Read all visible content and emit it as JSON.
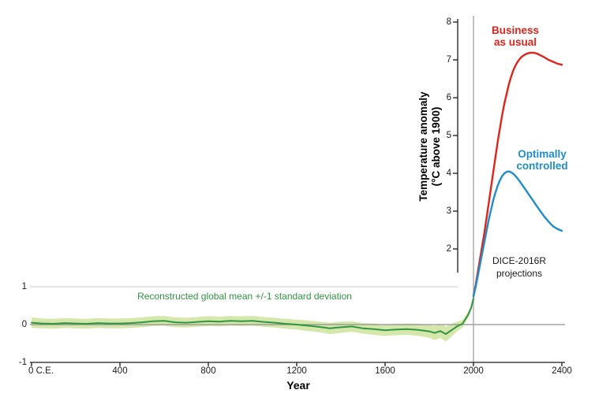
{
  "figure": {
    "x_axis_title": "Year",
    "y_axis_title": "Temperature anomaly\n(°C above 1900)",
    "labels": {
      "business": "Business\nas usual",
      "optimal": "Optimally\ncontrolled",
      "dice": "DICE-2016R\nprojections",
      "reconstruction": "Reconstructed global mean +/-1 standard deviation"
    }
  },
  "chart_data": {
    "type": "line",
    "title": "",
    "xlabel": "Year",
    "ylabel": "Temperature anomaly (°C above 1900)",
    "xlim": [
      0,
      2400
    ],
    "ylim": [
      -1,
      8.2
    ],
    "x_ticks": [
      {
        "year": 0,
        "label": "0 C.E.",
        "dx": 12
      },
      {
        "year": 400,
        "label": "400"
      },
      {
        "year": 800,
        "label": "800"
      },
      {
        "year": 1200,
        "label": "1200"
      },
      {
        "year": 1600,
        "label": "1600"
      },
      {
        "year": 2000,
        "label": "2000"
      },
      {
        "year": 2400,
        "label": "2400"
      }
    ],
    "left_y_ticks": [
      1,
      0,
      -1
    ],
    "right_y_ticks": [
      8,
      7,
      6,
      5,
      4,
      3,
      2
    ],
    "reference_lines": {
      "zero_level": 0,
      "plus_one_level": 1,
      "vertical_year": 2000
    },
    "colors": {
      "band": "#d6e7ac",
      "reconstruction": "#2f9642",
      "business": "#e2231a",
      "optimal": "#1f8dc8",
      "axis": "#1a1a1a",
      "grid": "#c9c9c9",
      "zero": "#8f8f8f",
      "year_line": "#a8a8a8"
    },
    "series": [
      {
        "name": "Reconstructed global mean +/-1 standard deviation",
        "color": "#2f9642",
        "x": [
          0,
          50,
          100,
          150,
          200,
          250,
          300,
          350,
          400,
          450,
          500,
          550,
          600,
          650,
          700,
          750,
          800,
          850,
          900,
          950,
          1000,
          1050,
          1100,
          1150,
          1200,
          1250,
          1300,
          1350,
          1400,
          1450,
          1500,
          1550,
          1600,
          1650,
          1700,
          1750,
          1800,
          1825,
          1850,
          1875,
          1900,
          1925,
          1950,
          1975,
          1990,
          2000
        ],
        "y": [
          0.05,
          0.03,
          0.02,
          0.04,
          0.03,
          0.02,
          0.04,
          0.03,
          0.03,
          0.04,
          0.06,
          0.09,
          0.1,
          0.06,
          0.05,
          0.07,
          0.09,
          0.08,
          0.1,
          0.09,
          0.1,
          0.07,
          0.05,
          0.02,
          0.0,
          -0.03,
          -0.06,
          -0.1,
          -0.07,
          -0.05,
          -0.1,
          -0.12,
          -0.15,
          -0.13,
          -0.12,
          -0.14,
          -0.18,
          -0.22,
          -0.17,
          -0.25,
          -0.15,
          -0.05,
          0.02,
          0.25,
          0.45,
          0.7
        ],
        "sd": [
          0.14,
          0.13,
          0.13,
          0.13,
          0.13,
          0.13,
          0.13,
          0.13,
          0.13,
          0.13,
          0.13,
          0.13,
          0.13,
          0.13,
          0.13,
          0.13,
          0.13,
          0.13,
          0.13,
          0.13,
          0.13,
          0.13,
          0.13,
          0.13,
          0.13,
          0.14,
          0.14,
          0.15,
          0.15,
          0.14,
          0.14,
          0.15,
          0.15,
          0.15,
          0.15,
          0.16,
          0.17,
          0.19,
          0.18,
          0.2,
          0.17,
          0.13,
          0.1,
          0.08,
          0.07,
          0.06
        ]
      },
      {
        "name": "Business as usual",
        "color": "#e2231a",
        "x": [
          2000,
          2010,
          2020,
          2030,
          2040,
          2050,
          2060,
          2070,
          2080,
          2090,
          2100,
          2110,
          2120,
          2130,
          2140,
          2150,
          2160,
          2170,
          2180,
          2190,
          2200,
          2210,
          2220,
          2230,
          2240,
          2250,
          2260,
          2270,
          2280,
          2290,
          2300,
          2320,
          2340,
          2360,
          2380,
          2400
        ],
        "y": [
          0.75,
          1.05,
          1.4,
          1.75,
          2.1,
          2.45,
          2.85,
          3.25,
          3.65,
          4.05,
          4.45,
          4.85,
          5.2,
          5.55,
          5.85,
          6.1,
          6.35,
          6.55,
          6.72,
          6.85,
          6.95,
          7.03,
          7.09,
          7.13,
          7.16,
          7.18,
          7.19,
          7.19,
          7.18,
          7.16,
          7.13,
          7.07,
          7.0,
          6.95,
          6.9,
          6.87
        ]
      },
      {
        "name": "Optimally controlled",
        "color": "#1f8dc8",
        "x": [
          2000,
          2010,
          2020,
          2030,
          2040,
          2050,
          2060,
          2070,
          2080,
          2090,
          2100,
          2110,
          2120,
          2130,
          2140,
          2150,
          2160,
          2170,
          2180,
          2190,
          2200,
          2220,
          2240,
          2260,
          2280,
          2300,
          2320,
          2340,
          2360,
          2380,
          2400
        ],
        "y": [
          0.75,
          1.0,
          1.3,
          1.6,
          1.9,
          2.2,
          2.5,
          2.8,
          3.05,
          3.3,
          3.5,
          3.68,
          3.82,
          3.93,
          4.0,
          4.04,
          4.05,
          4.03,
          3.99,
          3.93,
          3.86,
          3.7,
          3.53,
          3.36,
          3.19,
          3.02,
          2.86,
          2.72,
          2.6,
          2.53,
          2.48
        ]
      }
    ],
    "annotations": [
      {
        "text": "Business as usual",
        "color": "#e2231a"
      },
      {
        "text": "Optimally controlled",
        "color": "#1f8dc8"
      },
      {
        "text": "DICE-2016R projections",
        "color": "#1a1a1a"
      },
      {
        "text": "Reconstructed global mean +/-1 standard deviation",
        "color": "#2f9642"
      }
    ],
    "legend_position": "none",
    "grid": "minimal"
  }
}
